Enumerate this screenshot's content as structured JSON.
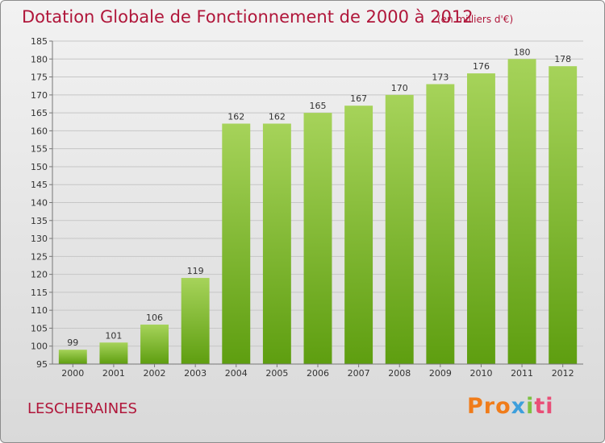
{
  "chart_data": {
    "type": "bar",
    "title": "Dotation Globale de Fonctionnement de 2000 à 2012",
    "subtitle": "(en milliers d'€)",
    "categories": [
      "2000",
      "2001",
      "2002",
      "2003",
      "2004",
      "2005",
      "2006",
      "2007",
      "2008",
      "2009",
      "2010",
      "2011",
      "2012"
    ],
    "values": [
      99,
      101,
      106,
      119,
      162,
      162,
      165,
      167,
      170,
      173,
      176,
      180,
      178
    ],
    "xlabel": "",
    "ylabel": "",
    "ylim": [
      95,
      185
    ],
    "yticks": [
      95,
      100,
      105,
      110,
      115,
      120,
      125,
      130,
      135,
      140,
      145,
      150,
      155,
      160,
      165,
      170,
      175,
      180,
      185
    ],
    "grid": true,
    "legend": "none",
    "bar_color_top": "#a6d35a",
    "bar_color_bottom": "#5e9e10"
  },
  "footer": {
    "commune": "LESCHERAINES",
    "logo": [
      "Pro",
      "x",
      "i",
      "ti"
    ]
  }
}
